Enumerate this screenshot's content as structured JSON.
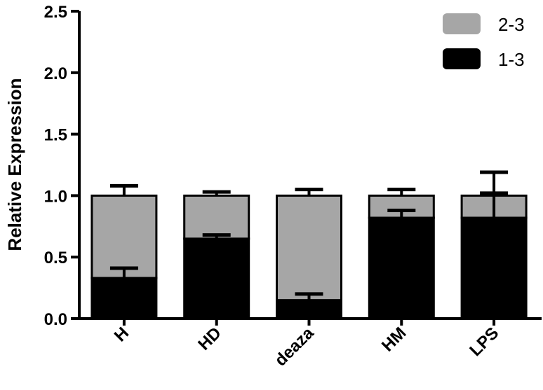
{
  "chart_data": {
    "type": "bar",
    "stacked": true,
    "categories": [
      "H",
      "HD",
      "deaza",
      "HM",
      "LPS"
    ],
    "series": [
      {
        "name": "1-3",
        "color": "#000000",
        "values": [
          0.33,
          0.65,
          0.15,
          0.82,
          0.82
        ],
        "error": [
          0.08,
          0.03,
          0.05,
          0.06,
          0.2
        ]
      },
      {
        "name": "2-3",
        "color": "#a6a6a6",
        "values": [
          0.67,
          0.35,
          0.85,
          0.18,
          0.18
        ],
        "error": [
          0.08,
          0.03,
          0.05,
          0.05,
          0.19
        ]
      }
    ],
    "title": "",
    "xlabel": "",
    "ylabel": "Relative Expression",
    "ylim": [
      0,
      2.5
    ],
    "yticks": [
      "0.0",
      "0.5",
      "1.0",
      "1.5",
      "2.0",
      "2.5"
    ],
    "legend": {
      "placement": "top-right",
      "entries": [
        {
          "label": "2-3",
          "color": "#a6a6a6"
        },
        {
          "label": "1-3",
          "color": "#000000"
        }
      ]
    },
    "grid": false
  }
}
